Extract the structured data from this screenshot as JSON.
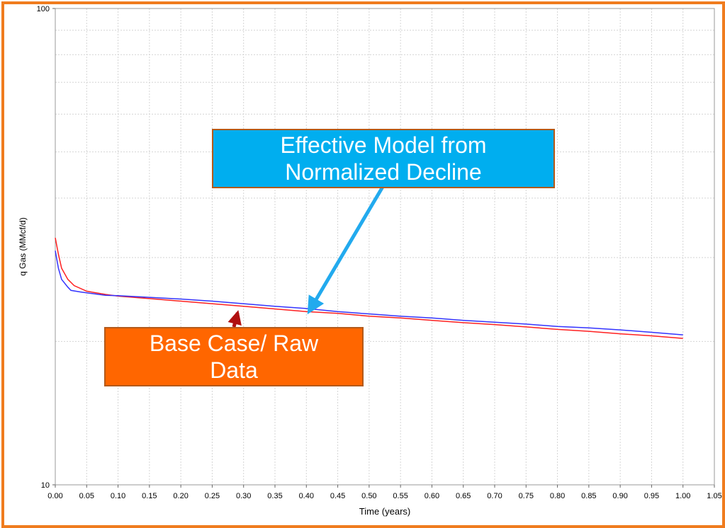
{
  "chart_data": {
    "type": "line",
    "title": "",
    "xlabel": "Time (years)",
    "ylabel": "q Gas (MMcf/d)",
    "xlim": [
      0,
      1.05
    ],
    "ylim": [
      10,
      100
    ],
    "yscale": "log",
    "grid": true,
    "x_ticks": [
      "0.00",
      "0.05",
      "0.10",
      "0.15",
      "0.20",
      "0.25",
      "0.30",
      "0.35",
      "0.40",
      "0.45",
      "0.50",
      "0.55",
      "0.60",
      "0.65",
      "0.70",
      "0.75",
      "0.80",
      "0.85",
      "0.90",
      "0.95",
      "1.00",
      "1.05"
    ],
    "y_tick_labels": [
      "100",
      "10"
    ],
    "series": [
      {
        "name": "Base Case/ Raw Data",
        "color": "#ff2020",
        "x": [
          0.0,
          0.005,
          0.01,
          0.02,
          0.03,
          0.05,
          0.08,
          0.1,
          0.15,
          0.2,
          0.25,
          0.3,
          0.35,
          0.4,
          0.45,
          0.5,
          0.55,
          0.6,
          0.65,
          0.7,
          0.75,
          0.8,
          0.85,
          0.9,
          0.95,
          1.0
        ],
        "y": [
          33.0,
          30.5,
          28.5,
          27.0,
          26.2,
          25.5,
          25.1,
          24.9,
          24.6,
          24.3,
          24.0,
          23.7,
          23.4,
          23.1,
          22.9,
          22.6,
          22.4,
          22.15,
          21.9,
          21.7,
          21.45,
          21.2,
          21.0,
          20.75,
          20.55,
          20.3
        ]
      },
      {
        "name": "Effective Model from Normalized Decline",
        "color": "#3333ff",
        "x": [
          0.0,
          0.005,
          0.01,
          0.02,
          0.025,
          0.04,
          0.06,
          0.08,
          0.1,
          0.15,
          0.2,
          0.25,
          0.3,
          0.35,
          0.4,
          0.45,
          0.5,
          0.55,
          0.6,
          0.65,
          0.7,
          0.75,
          0.8,
          0.85,
          0.9,
          0.95,
          1.0
        ],
        "y": [
          31.0,
          28.5,
          27.0,
          26.0,
          25.6,
          25.4,
          25.2,
          25.0,
          24.95,
          24.75,
          24.55,
          24.3,
          24.0,
          23.7,
          23.45,
          23.1,
          22.85,
          22.6,
          22.4,
          22.15,
          21.95,
          21.75,
          21.5,
          21.35,
          21.15,
          20.9,
          20.65
        ]
      }
    ],
    "annotations": [
      {
        "text": "Effective Model from Normalized Decline",
        "line1": "Effective Model from",
        "line2": "Normalized Decline",
        "bg": "#00aeef",
        "arrow_color": "#22aaee",
        "points_to": {
          "x": 0.4,
          "y": 23.3
        }
      },
      {
        "text": "Base Case/ Raw Data",
        "line1": "Base Case/ Raw",
        "line2": "Data",
        "bg": "#ff6600",
        "arrow_color": "#b01010",
        "points_to": {
          "x": 0.295,
          "y": 23.6
        }
      }
    ]
  }
}
